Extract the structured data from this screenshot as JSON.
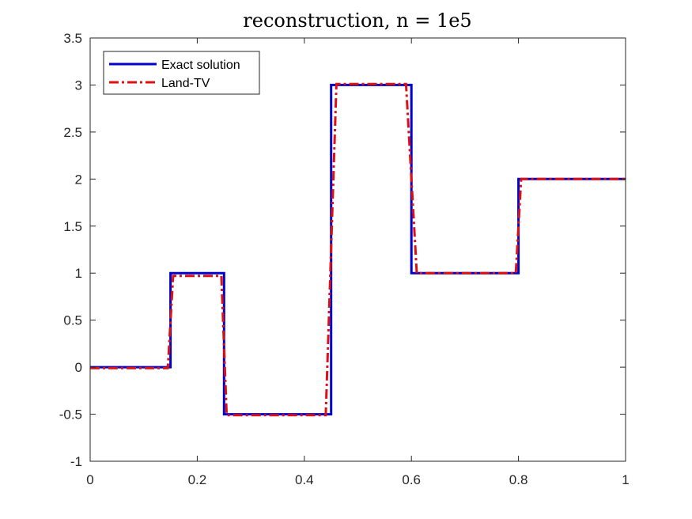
{
  "chart_data": {
    "type": "line",
    "title": "reconstruction, n = 1e5",
    "xlabel": "",
    "ylabel": "",
    "xlim": [
      0,
      1
    ],
    "ylim": [
      -1,
      3.5
    ],
    "xticks": [
      0,
      0.2,
      0.4,
      0.6,
      0.8,
      1
    ],
    "xtick_labels": [
      "0",
      "0.2",
      "0.4",
      "0.6",
      "0.8",
      "1"
    ],
    "yticks": [
      -1,
      -0.5,
      0,
      0.5,
      1,
      1.5,
      2,
      2.5,
      3,
      3.5
    ],
    "ytick_labels": [
      "-1",
      "-0.5",
      "0",
      "0.5",
      "1",
      "1.5",
      "2",
      "2.5",
      "3",
      "3.5"
    ],
    "grid": false,
    "legend_position": "top-left",
    "series": [
      {
        "name": "Exact solution",
        "color": "#0000cc",
        "style": "solid",
        "x": [
          0,
          0.15,
          0.15,
          0.25,
          0.25,
          0.45,
          0.45,
          0.6,
          0.6,
          0.8,
          0.8,
          1
        ],
        "y": [
          0,
          0,
          1,
          1,
          -0.5,
          -0.5,
          3,
          3,
          1,
          1,
          2,
          2
        ]
      },
      {
        "name": "Land-TV",
        "color": "#dd1111",
        "style": "dashdot",
        "x": [
          0,
          0.145,
          0.155,
          0.245,
          0.255,
          0.44,
          0.46,
          0.59,
          0.61,
          0.795,
          0.805,
          1
        ],
        "y": [
          -0.01,
          -0.01,
          0.97,
          0.97,
          -0.51,
          -0.51,
          3.01,
          3.01,
          1,
          1,
          2,
          2
        ]
      }
    ]
  }
}
